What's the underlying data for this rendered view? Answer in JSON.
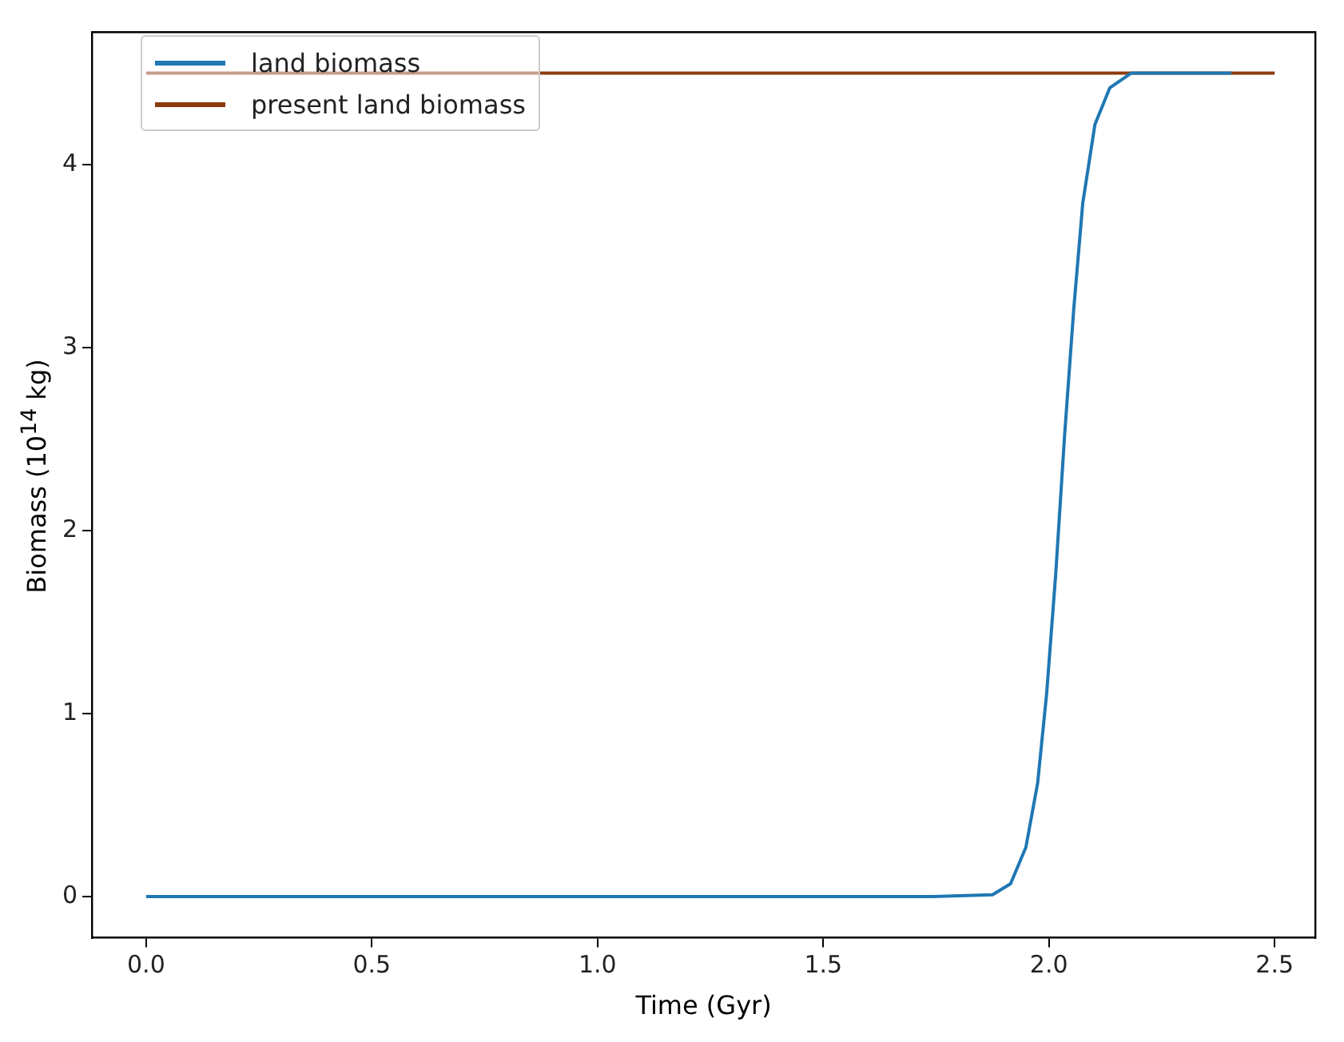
{
  "chart_data": {
    "type": "line",
    "xlabel": "Time (Gyr)",
    "ylabel": "Biomass (10$^{14}$ kg)",
    "xlim": [
      -0.12,
      2.59
    ],
    "ylim": [
      -0.225,
      4.725
    ],
    "xticks": [
      {
        "value": 0,
        "label": "0.0"
      },
      {
        "value": 0.5,
        "label": "0.5"
      },
      {
        "value": 1,
        "label": "1.0"
      },
      {
        "value": 1.5,
        "label": "1.5"
      },
      {
        "value": 2,
        "label": "2.0"
      },
      {
        "value": 2.5,
        "label": "2.5"
      }
    ],
    "yticks": [
      0,
      1,
      2,
      3,
      4
    ],
    "legend": "top left",
    "grid": false,
    "line_style": "solid",
    "marker": "none",
    "series": [
      {
        "name": "land biomass",
        "color": "#1f77b4",
        "x": [
          0,
          1.742,
          1.875,
          1.915,
          1.949,
          1.975,
          1.995,
          2.015,
          2.035,
          2.055,
          2.075,
          2.102,
          2.135,
          2.182,
          2.404
        ],
        "values": [
          0,
          0,
          0.01,
          0.07,
          0.27,
          0.62,
          1.11,
          1.76,
          2.53,
          3.21,
          3.79,
          4.22,
          4.42,
          4.5,
          4.5
        ]
      },
      {
        "name": "present land biomass",
        "color": "#8b3a0f",
        "x": [
          0,
          2.5
        ],
        "values": [
          4.5,
          4.5
        ]
      }
    ]
  }
}
